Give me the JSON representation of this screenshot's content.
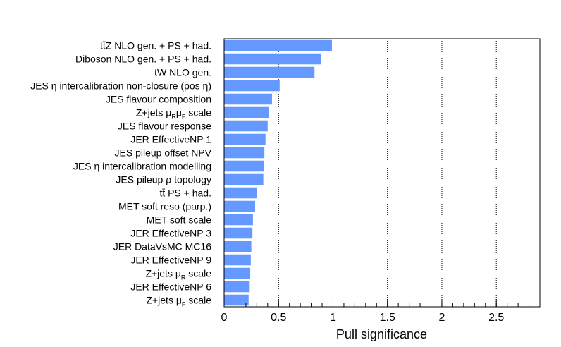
{
  "chart_data": {
    "type": "bar",
    "orientation": "horizontal",
    "xlabel": "Pull significance",
    "xlim": [
      0,
      2.9
    ],
    "xticks": [
      "0",
      "0.5",
      "1",
      "1.5",
      "2",
      "2.5"
    ],
    "grid": "vertical-dotted",
    "bar_color": "#6699ff",
    "categories": [
      "tt̄Z NLO gen. + PS + had.",
      "Diboson NLO gen. + PS + had.",
      "tW NLO gen.",
      "JES η intercalibration non-closure (pos η)",
      "JES flavour composition",
      "Z+jets μRμF scale",
      "JES flavour response",
      "JER EffectiveNP 1",
      "JES pileup offset NPV",
      "JES η intercalibration modelling",
      "JES pileup ρ topology",
      "tt̄ PS + had.",
      "MET soft reso (parp.)",
      "MET soft scale",
      "JER EffectiveNP 3",
      "JER DataVsMC MC16",
      "JER EffectiveNP 9",
      "Z+jets μR scale",
      "JER EffectiveNP 6",
      "Z+jets μF scale"
    ],
    "labels": [
      [
        {
          "t": "tt̄Z NLO gen. + PS + had."
        }
      ],
      [
        {
          "t": "Diboson NLO gen. + PS + had."
        }
      ],
      [
        {
          "t": "tW NLO gen."
        }
      ],
      [
        {
          "t": "JES  η intercalibration non-closure (pos     η)"
        }
      ],
      [
        {
          "t": "JES flavour composition"
        }
      ],
      [
        {
          "t": "Z+jets  μ"
        },
        {
          "t": "R",
          "sub": true
        },
        {
          "t": "μ"
        },
        {
          "t": "F",
          "sub": true
        },
        {
          "t": " scale"
        }
      ],
      [
        {
          "t": "JES flavour response"
        }
      ],
      [
        {
          "t": "JER EffectiveNP 1"
        }
      ],
      [
        {
          "t": "JES pileup offset NPV"
        }
      ],
      [
        {
          "t": "JES  η intercalibration modelling"
        }
      ],
      [
        {
          "t": "JES pileup   ρ topology"
        }
      ],
      [
        {
          "t": "tt̄ PS + had."
        }
      ],
      [
        {
          "t": "MET soft reso (parp.)"
        }
      ],
      [
        {
          "t": "MET soft scale"
        }
      ],
      [
        {
          "t": "JER EffectiveNP 3"
        }
      ],
      [
        {
          "t": "JER DataVsMC MC16"
        }
      ],
      [
        {
          "t": "JER EffectiveNP 9"
        }
      ],
      [
        {
          "t": "Z+jets  μ"
        },
        {
          "t": "R",
          "sub": true
        },
        {
          "t": " scale"
        }
      ],
      [
        {
          "t": "JER EffectiveNP 6"
        }
      ],
      [
        {
          "t": "Z+jets  μ"
        },
        {
          "t": "F",
          "sub": true
        },
        {
          "t": " scale"
        }
      ]
    ],
    "values": [
      0.99,
      0.89,
      0.83,
      0.51,
      0.44,
      0.41,
      0.4,
      0.38,
      0.37,
      0.365,
      0.36,
      0.3,
      0.285,
      0.265,
      0.26,
      0.25,
      0.245,
      0.24,
      0.235,
      0.225
    ]
  }
}
